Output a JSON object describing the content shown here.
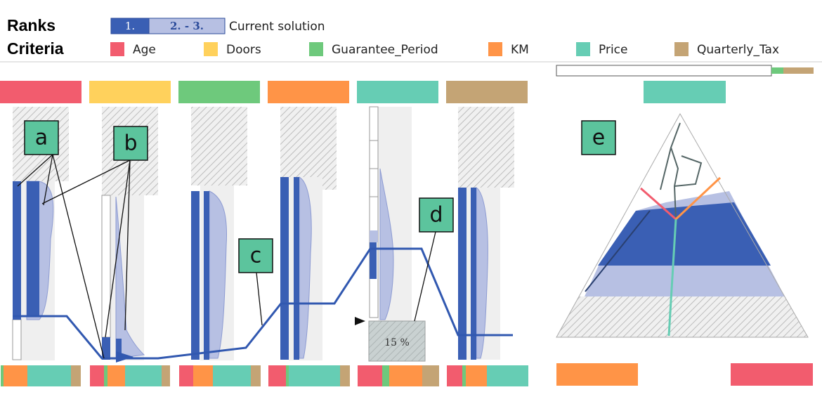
{
  "legend": {
    "ranks_title": "Ranks",
    "ranks": [
      "1.",
      "2. - 3."
    ],
    "current_solution": "Current solution",
    "criteria_title": "Criteria",
    "criteria": [
      {
        "name": "Age",
        "color": "#f25c6e"
      },
      {
        "name": "Doors",
        "color": "#ffd15c"
      },
      {
        "name": "Guarantee_Period",
        "color": "#6ec97c"
      },
      {
        "name": "KM",
        "color": "#ff9447"
      },
      {
        "name": "Price",
        "color": "#66cdb4"
      },
      {
        "name": "Quarterly_Tax",
        "color": "#c4a475"
      }
    ]
  },
  "annotations": [
    "a",
    "b",
    "c",
    "d",
    "e"
  ],
  "threshold_label": "15 %"
}
